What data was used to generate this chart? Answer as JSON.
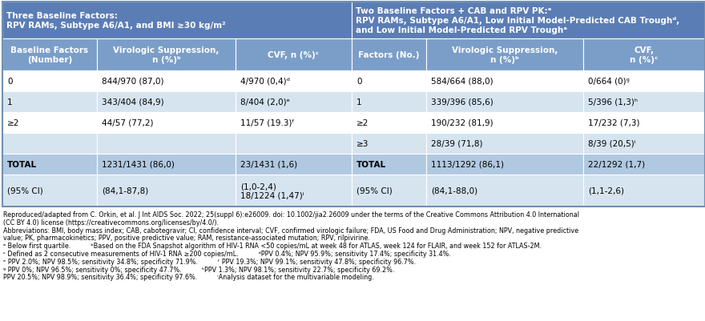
{
  "header_bg": "#5b7db5",
  "col_header_bg": "#7b9ec8",
  "row_odd_bg": "#ffffff",
  "row_even_bg": "#d6e4f0",
  "total_bg": "#b0c8e0",
  "ci_bg": "#d6e4f0",
  "border_color": "#ffffff",
  "outer_border": "#8aaac8",
  "left_header_title": "Three Baseline Factors:\nRPV RAMs, Subtype A6/A1, and BMI ≥30 kg/m²",
  "right_header_title": "Two Baseline Factors + CAB and RPV PK:ᵃ\nRPV RAMs, Subtype A6/A1, Low Initial Model-Predicted CAB Troughᵈ,\nand Low Initial Model-Predicted RPV Troughᵃ",
  "col_headers_left": [
    "Baseline Factors\n(Number)",
    "Virologic Suppression,\nn (%)ᵇ",
    "CVF, n (%)ᶜ"
  ],
  "col_headers_right": [
    "Factors (No.)",
    "Virologic Suppression,\nn (%)ᵇ",
    "CVF,\nn (%)ᶜ"
  ],
  "rows_left": [
    [
      "0",
      "844/970 (87,0)",
      "4/970 (0,4)ᵈ"
    ],
    [
      "1",
      "343/404 (84,9)",
      "8/404 (2,0)ᵉ"
    ],
    [
      "≥2",
      "44/57 (77,2)",
      "11/57 (19.3)ᶠ"
    ],
    [
      "",
      "",
      ""
    ]
  ],
  "rows_right": [
    [
      "0",
      "584/664 (88,0)",
      "0/664 (0)ᵍ"
    ],
    [
      "1",
      "339/396 (85,6)",
      "5/396 (1,3)ʰ"
    ],
    [
      "≥2",
      "190/232 (81,9)",
      "17/232 (7,3)"
    ],
    [
      "≥3",
      "28/39 (71,8)",
      "8/39 (20,5)ⁱ"
    ]
  ],
  "total_left": [
    "TOTAL",
    "1231/1431 (86,0)",
    "23/1431 (1,6)"
  ],
  "total_right": [
    "TOTAL",
    "1113/1292 (86,1)",
    "22/1292 (1,7)"
  ],
  "ci_left": [
    "(95% CI)",
    "(84,1-87,8)",
    "(1,0-2,4)\n18/1224 (1,47)ⁱ"
  ],
  "ci_right": [
    "(95% CI)",
    "(84,1-88,0)",
    "(1,1-2,6)"
  ],
  "footnote_line1": "Reproduced/adapted from C. Orkin, et al. J Int AIDS Soc. 2022; 25(suppl 6):e26009. doi: 10.1002/jia2.26009 under the terms of the Creative Commons Attribution 4.0 International",
  "footnote_line2": "(CC BY 4.0) license (https://creativecommons.org/licenses/by/4.0/).",
  "footnote_abbrev1": "Abbreviations: ",
  "footnote_abbrev2": "BMI",
  "footnote_abbrev3": ", body mass index; ",
  "footnote_abbrev4": "CAB",
  "footnote_abbrev5": ", cabotegravir; ",
  "footnote_abbrev6": "CI",
  "footnote_abbrev7": ", confidence interval; ",
  "footnote_abbrev8": "CVF",
  "footnote_abbrev9": ", confirmed virologic failure; ",
  "footnote_abbrev10": "FDA",
  "footnote_abbrev11": ", US Food and Drug Administration; ",
  "footnote_abbrev12": "NPV",
  "footnote_abbrev13": ", negative predictive",
  "footnote_line_abbrev2": "value; ",
  "footnote_line_abbrev2b": "PK",
  "footnote_line_abbrev2c": ", pharmacokinetics; ",
  "footnote_line_abbrev2d": "PPV",
  "footnote_line_abbrev2e": ", positive predictive value; ",
  "footnote_line_abbrev2f": "RAM",
  "footnote_line_abbrev2g": ", resistance-associated mutation; ",
  "footnote_line_abbrev2h": "RPV",
  "footnote_line_abbrev2i": ", rilpivirine.",
  "fn_lines": [
    "ᵃ Below first quartile.          ᵇBased on the FDA Snapshot algorithm of HIV-1 RNA <50 copies/mL at week 48 for ATLAS, week 124 for FLAIR, and week 152 for ATLAS-2M.",
    "ᶜ Defined as 2 consecutive measurements of HIV-1 RNA ≥200 copies/mL.          ᵈPPV 0.4%; NPV 95.9%; sensitivity 17.4%; specificity 31.4%.",
    "ᵉ PPV 2.0%; NPV 98.5%; sensitivity 34.8%; specificity 71.9%.          ᶠ PPV 19.3%; NPV 99.1%; sensitivity 47.8%; specificity 96.7%.",
    "ᵍ PPV 0%; NPV 96.5%; sensitivity 0%; specificity 47.7%.          ʰPPV 1.3%; NPV 98.1%; sensitivity 22.7%; specificity 69.2%.",
    "PPV 20.5%; NPV 98.9%; sensitivity 36.4%; specificity 97.6%.          ⁱAnalysis dataset for the multivariable modeling."
  ],
  "fig_width": 8.8,
  "fig_height": 4.02,
  "dpi": 100
}
